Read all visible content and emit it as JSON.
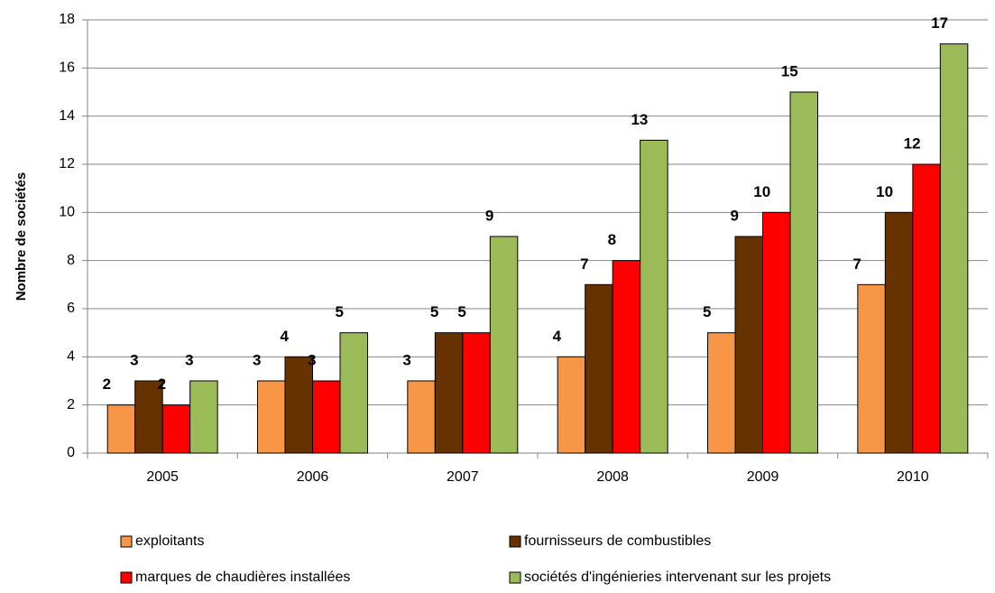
{
  "chart_data": {
    "type": "bar",
    "y_label": "Nombre de sociétés",
    "categories": [
      "2005",
      "2006",
      "2007",
      "2008",
      "2009",
      "2010"
    ],
    "series": [
      {
        "name": "exploitants",
        "color": "#f79646",
        "values": [
          2,
          3,
          3,
          4,
          5,
          7
        ]
      },
      {
        "name": "fournisseurs de combustibles",
        "color": "#663300",
        "values": [
          3,
          4,
          5,
          7,
          9,
          10
        ]
      },
      {
        "name": "marques de chaudières installées",
        "color": "#ff0000",
        "values": [
          2,
          3,
          5,
          8,
          10,
          12
        ]
      },
      {
        "name": "sociétés d'ingénieries intervenant sur les projets",
        "color": "#9bbb59",
        "values": [
          3,
          5,
          9,
          13,
          15,
          17
        ]
      }
    ],
    "ylim": [
      0,
      18
    ],
    "yticks": [
      0,
      2,
      4,
      6,
      8,
      10,
      12,
      14,
      16,
      18
    ],
    "grid": true,
    "legend": "bottom"
  }
}
